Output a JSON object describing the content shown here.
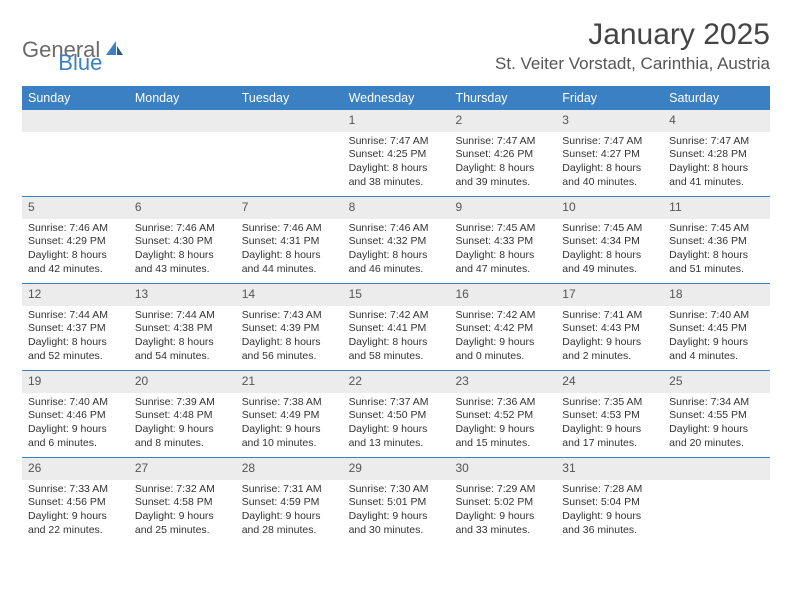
{
  "logo": {
    "text1": "General",
    "text2": "Blue"
  },
  "title": "January 2025",
  "location": "St. Veiter Vorstadt, Carinthia, Austria",
  "colors": {
    "header_bg": "#3b80c2",
    "header_text": "#ffffff",
    "daynum_bg": "#ececec",
    "row_divider": "#3b80c2",
    "text": "#333333",
    "logo_gray": "#6b6b6b",
    "logo_blue": "#3b80c2"
  },
  "days_of_week": [
    "Sunday",
    "Monday",
    "Tuesday",
    "Wednesday",
    "Thursday",
    "Friday",
    "Saturday"
  ],
  "weeks": [
    [
      null,
      null,
      null,
      {
        "n": "1",
        "sr": "Sunrise: 7:47 AM",
        "ss": "Sunset: 4:25 PM",
        "dl1": "Daylight: 8 hours",
        "dl2": "and 38 minutes."
      },
      {
        "n": "2",
        "sr": "Sunrise: 7:47 AM",
        "ss": "Sunset: 4:26 PM",
        "dl1": "Daylight: 8 hours",
        "dl2": "and 39 minutes."
      },
      {
        "n": "3",
        "sr": "Sunrise: 7:47 AM",
        "ss": "Sunset: 4:27 PM",
        "dl1": "Daylight: 8 hours",
        "dl2": "and 40 minutes."
      },
      {
        "n": "4",
        "sr": "Sunrise: 7:47 AM",
        "ss": "Sunset: 4:28 PM",
        "dl1": "Daylight: 8 hours",
        "dl2": "and 41 minutes."
      }
    ],
    [
      {
        "n": "5",
        "sr": "Sunrise: 7:46 AM",
        "ss": "Sunset: 4:29 PM",
        "dl1": "Daylight: 8 hours",
        "dl2": "and 42 minutes."
      },
      {
        "n": "6",
        "sr": "Sunrise: 7:46 AM",
        "ss": "Sunset: 4:30 PM",
        "dl1": "Daylight: 8 hours",
        "dl2": "and 43 minutes."
      },
      {
        "n": "7",
        "sr": "Sunrise: 7:46 AM",
        "ss": "Sunset: 4:31 PM",
        "dl1": "Daylight: 8 hours",
        "dl2": "and 44 minutes."
      },
      {
        "n": "8",
        "sr": "Sunrise: 7:46 AM",
        "ss": "Sunset: 4:32 PM",
        "dl1": "Daylight: 8 hours",
        "dl2": "and 46 minutes."
      },
      {
        "n": "9",
        "sr": "Sunrise: 7:45 AM",
        "ss": "Sunset: 4:33 PM",
        "dl1": "Daylight: 8 hours",
        "dl2": "and 47 minutes."
      },
      {
        "n": "10",
        "sr": "Sunrise: 7:45 AM",
        "ss": "Sunset: 4:34 PM",
        "dl1": "Daylight: 8 hours",
        "dl2": "and 49 minutes."
      },
      {
        "n": "11",
        "sr": "Sunrise: 7:45 AM",
        "ss": "Sunset: 4:36 PM",
        "dl1": "Daylight: 8 hours",
        "dl2": "and 51 minutes."
      }
    ],
    [
      {
        "n": "12",
        "sr": "Sunrise: 7:44 AM",
        "ss": "Sunset: 4:37 PM",
        "dl1": "Daylight: 8 hours",
        "dl2": "and 52 minutes."
      },
      {
        "n": "13",
        "sr": "Sunrise: 7:44 AM",
        "ss": "Sunset: 4:38 PM",
        "dl1": "Daylight: 8 hours",
        "dl2": "and 54 minutes."
      },
      {
        "n": "14",
        "sr": "Sunrise: 7:43 AM",
        "ss": "Sunset: 4:39 PM",
        "dl1": "Daylight: 8 hours",
        "dl2": "and 56 minutes."
      },
      {
        "n": "15",
        "sr": "Sunrise: 7:42 AM",
        "ss": "Sunset: 4:41 PM",
        "dl1": "Daylight: 8 hours",
        "dl2": "and 58 minutes."
      },
      {
        "n": "16",
        "sr": "Sunrise: 7:42 AM",
        "ss": "Sunset: 4:42 PM",
        "dl1": "Daylight: 9 hours",
        "dl2": "and 0 minutes."
      },
      {
        "n": "17",
        "sr": "Sunrise: 7:41 AM",
        "ss": "Sunset: 4:43 PM",
        "dl1": "Daylight: 9 hours",
        "dl2": "and 2 minutes."
      },
      {
        "n": "18",
        "sr": "Sunrise: 7:40 AM",
        "ss": "Sunset: 4:45 PM",
        "dl1": "Daylight: 9 hours",
        "dl2": "and 4 minutes."
      }
    ],
    [
      {
        "n": "19",
        "sr": "Sunrise: 7:40 AM",
        "ss": "Sunset: 4:46 PM",
        "dl1": "Daylight: 9 hours",
        "dl2": "and 6 minutes."
      },
      {
        "n": "20",
        "sr": "Sunrise: 7:39 AM",
        "ss": "Sunset: 4:48 PM",
        "dl1": "Daylight: 9 hours",
        "dl2": "and 8 minutes."
      },
      {
        "n": "21",
        "sr": "Sunrise: 7:38 AM",
        "ss": "Sunset: 4:49 PM",
        "dl1": "Daylight: 9 hours",
        "dl2": "and 10 minutes."
      },
      {
        "n": "22",
        "sr": "Sunrise: 7:37 AM",
        "ss": "Sunset: 4:50 PM",
        "dl1": "Daylight: 9 hours",
        "dl2": "and 13 minutes."
      },
      {
        "n": "23",
        "sr": "Sunrise: 7:36 AM",
        "ss": "Sunset: 4:52 PM",
        "dl1": "Daylight: 9 hours",
        "dl2": "and 15 minutes."
      },
      {
        "n": "24",
        "sr": "Sunrise: 7:35 AM",
        "ss": "Sunset: 4:53 PM",
        "dl1": "Daylight: 9 hours",
        "dl2": "and 17 minutes."
      },
      {
        "n": "25",
        "sr": "Sunrise: 7:34 AM",
        "ss": "Sunset: 4:55 PM",
        "dl1": "Daylight: 9 hours",
        "dl2": "and 20 minutes."
      }
    ],
    [
      {
        "n": "26",
        "sr": "Sunrise: 7:33 AM",
        "ss": "Sunset: 4:56 PM",
        "dl1": "Daylight: 9 hours",
        "dl2": "and 22 minutes."
      },
      {
        "n": "27",
        "sr": "Sunrise: 7:32 AM",
        "ss": "Sunset: 4:58 PM",
        "dl1": "Daylight: 9 hours",
        "dl2": "and 25 minutes."
      },
      {
        "n": "28",
        "sr": "Sunrise: 7:31 AM",
        "ss": "Sunset: 4:59 PM",
        "dl1": "Daylight: 9 hours",
        "dl2": "and 28 minutes."
      },
      {
        "n": "29",
        "sr": "Sunrise: 7:30 AM",
        "ss": "Sunset: 5:01 PM",
        "dl1": "Daylight: 9 hours",
        "dl2": "and 30 minutes."
      },
      {
        "n": "30",
        "sr": "Sunrise: 7:29 AM",
        "ss": "Sunset: 5:02 PM",
        "dl1": "Daylight: 9 hours",
        "dl2": "and 33 minutes."
      },
      {
        "n": "31",
        "sr": "Sunrise: 7:28 AM",
        "ss": "Sunset: 5:04 PM",
        "dl1": "Daylight: 9 hours",
        "dl2": "and 36 minutes."
      },
      null
    ]
  ]
}
